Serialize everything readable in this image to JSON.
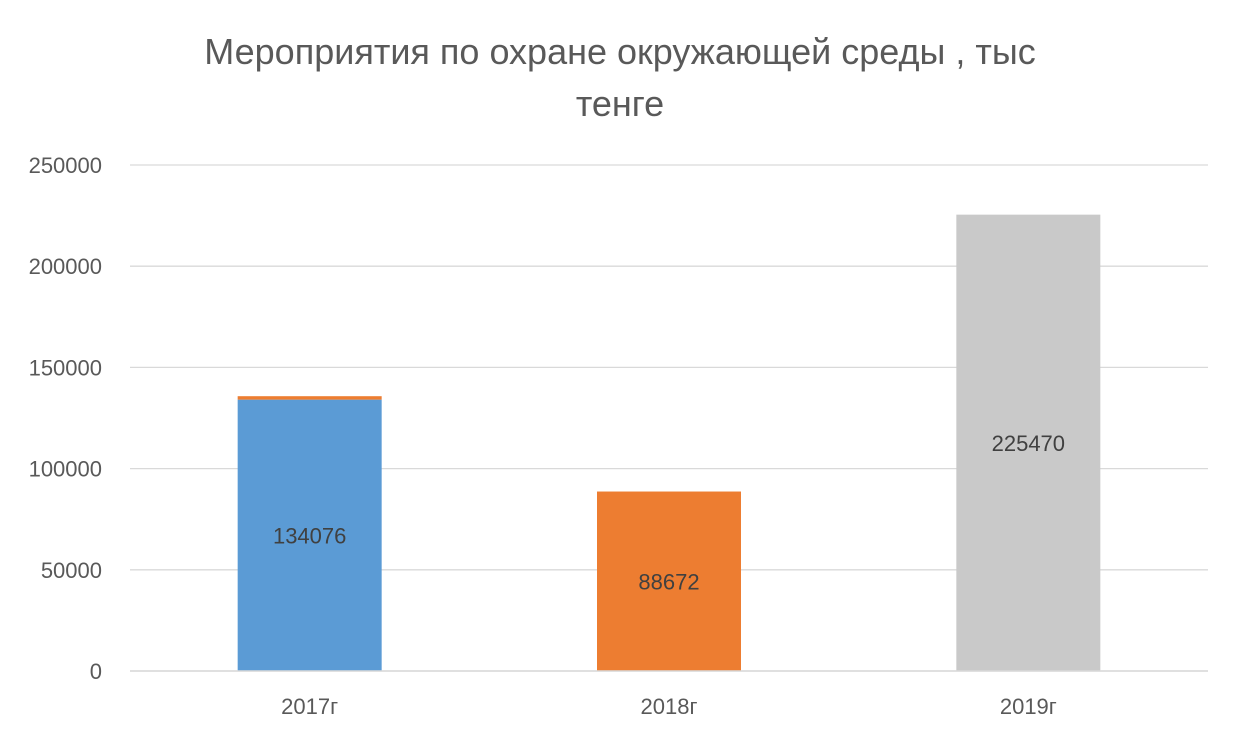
{
  "chart_data": {
    "type": "bar",
    "stacked": true,
    "title_lines": [
      "Мероприятия по охране окружающей среды , тыс",
      "тенге"
    ],
    "categories": [
      "2017г",
      "2018г",
      "2019г"
    ],
    "ylim": [
      0,
      250000
    ],
    "yticks": [
      0,
      50000,
      100000,
      150000,
      200000,
      250000
    ],
    "grid": true,
    "legend": "none",
    "series": [
      {
        "color": "#5B9BD5",
        "values": [
          134076,
          0,
          0
        ],
        "labels": [
          "134076",
          "",
          ""
        ]
      },
      {
        "color": "#ED7D31",
        "values": [
          1700,
          88672,
          0
        ],
        "labels": [
          "",
          "88672",
          ""
        ]
      },
      {
        "color": "#C9C9C9",
        "values": [
          0,
          0,
          225470
        ],
        "labels": [
          "",
          "",
          "225470"
        ]
      }
    ]
  }
}
